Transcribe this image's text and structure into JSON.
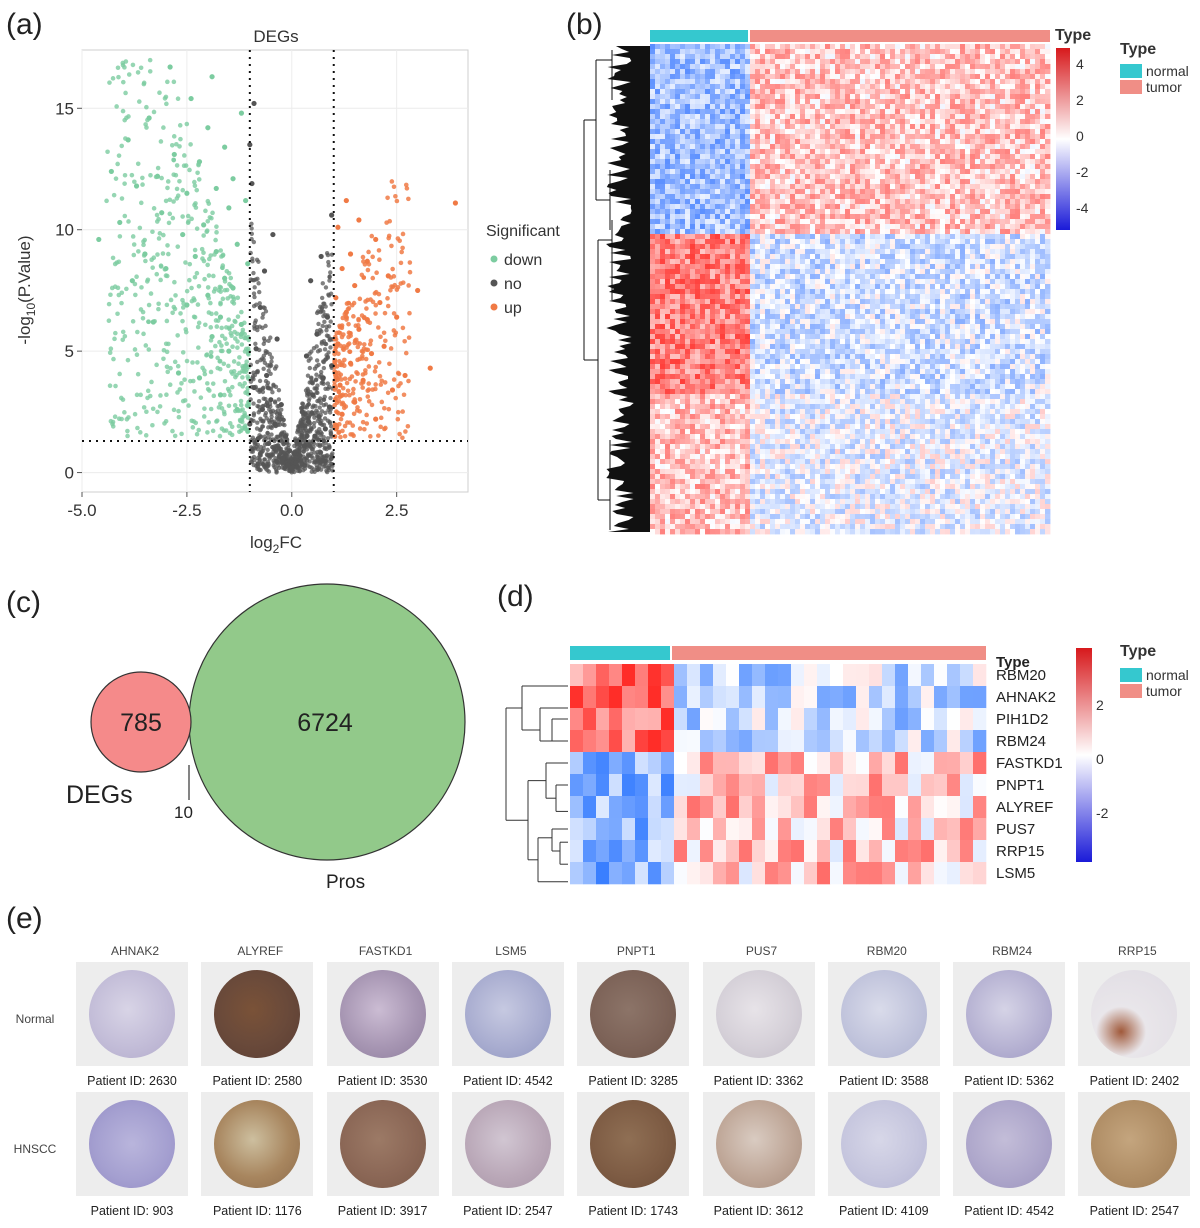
{
  "panels": {
    "a": "(a)",
    "b": "(b)",
    "c": "(c)",
    "d": "(d)",
    "e": "(e)"
  },
  "volcano": {
    "title": "DEGs",
    "ylabel_pre": "-log",
    "ylabel_sub": "10",
    "ylabel_post": "(P.Value)",
    "xlabel_pre": "log",
    "xlabel_sub": "2",
    "xlabel_post": "FC",
    "legend_title": "Significant",
    "legend": [
      {
        "label": "down",
        "color": "#7ccca0"
      },
      {
        "label": "no",
        "color": "#555555"
      },
      {
        "label": "up",
        "color": "#f07a45"
      }
    ]
  },
  "chart_data": {
    "type": "scatter",
    "title": "DEGs",
    "xlabel": "log2FC",
    "ylabel": "-log10(P.Value)",
    "xlim": [
      -5.0,
      4.2
    ],
    "ylim": [
      -0.8,
      17.4
    ],
    "xticks": [
      "-5.0",
      "-2.5",
      "0.0",
      "2.5"
    ],
    "xtick_values": [
      -5.0,
      -2.5,
      0.0,
      2.5
    ],
    "yticks": [
      "0",
      "5",
      "10",
      "15"
    ],
    "ytick_values": [
      0,
      5,
      10,
      15
    ],
    "thresholds": {
      "logFC": [
        -1,
        1
      ],
      "neglog10p": 1.3
    },
    "grid": true,
    "legend_position": "right",
    "series": [
      {
        "name": "down",
        "color": "#7ccca0",
        "points": [
          [
            -4.6,
            9.6
          ],
          [
            -4.3,
            12.4
          ],
          [
            -4.1,
            10.3
          ],
          [
            -3.9,
            13.7
          ],
          [
            -3.8,
            7.9
          ],
          [
            -3.7,
            11.8
          ],
          [
            -3.5,
            9.0
          ],
          [
            -3.4,
            14.6
          ],
          [
            -3.3,
            6.2
          ],
          [
            -3.2,
            12.2
          ],
          [
            -3.1,
            10.7
          ],
          [
            -3.0,
            8.4
          ],
          [
            -2.9,
            16.7
          ],
          [
            -2.8,
            13.1
          ],
          [
            -2.7,
            4.1
          ],
          [
            -2.6,
            9.8
          ],
          [
            -2.5,
            11.5
          ],
          [
            -2.5,
            6.9
          ],
          [
            -2.4,
            15.4
          ],
          [
            -2.3,
            8.9
          ],
          [
            -2.2,
            12.8
          ],
          [
            -2.2,
            3.9
          ],
          [
            -2.1,
            10.2
          ],
          [
            -2.0,
            7.3
          ],
          [
            -2.0,
            14.2
          ],
          [
            -1.9,
            5.6
          ],
          [
            -1.9,
            16.3
          ],
          [
            -1.8,
            9.1
          ],
          [
            -1.8,
            11.7
          ],
          [
            -1.7,
            6.4
          ],
          [
            -1.7,
            3.2
          ],
          [
            -1.6,
            13.4
          ],
          [
            -1.6,
            8.0
          ],
          [
            -1.5,
            10.9
          ],
          [
            -1.5,
            5.0
          ],
          [
            -1.4,
            12.1
          ],
          [
            -1.4,
            7.6
          ],
          [
            -1.3,
            2.6
          ],
          [
            -1.3,
            9.4
          ],
          [
            -1.2,
            6.1
          ],
          [
            -1.2,
            14.8
          ],
          [
            -1.1,
            4.4
          ],
          [
            -1.1,
            11.2
          ],
          [
            -1.05,
            1.7
          ],
          [
            -1.05,
            8.6
          ]
        ]
      },
      {
        "name": "up",
        "color": "#f07a45",
        "points": [
          [
            1.05,
            1.8
          ],
          [
            1.05,
            7.2
          ],
          [
            1.1,
            5.3
          ],
          [
            1.1,
            10.1
          ],
          [
            1.15,
            3.6
          ],
          [
            1.2,
            8.4
          ],
          [
            1.2,
            2.4
          ],
          [
            1.3,
            6.6
          ],
          [
            1.3,
            11.2
          ],
          [
            1.4,
            4.5
          ],
          [
            1.4,
            9.0
          ],
          [
            1.5,
            7.7
          ],
          [
            1.5,
            2.9
          ],
          [
            1.6,
            5.9
          ],
          [
            1.6,
            10.4
          ],
          [
            1.7,
            3.8
          ],
          [
            1.8,
            8.7
          ],
          [
            1.8,
            6.3
          ],
          [
            1.9,
            4.9
          ],
          [
            2.0,
            9.6
          ],
          [
            2.0,
            2.2
          ],
          [
            2.1,
            7.0
          ],
          [
            2.2,
            5.2
          ],
          [
            2.3,
            8.1
          ],
          [
            2.4,
            3.4
          ],
          [
            2.5,
            6.4
          ],
          [
            2.7,
            4.0
          ],
          [
            3.0,
            7.5
          ],
          [
            3.3,
            4.3
          ],
          [
            3.9,
            11.1
          ]
        ]
      },
      {
        "name": "no",
        "color": "#555555",
        "points": [
          [
            -1.0,
            2.0
          ],
          [
            -0.9,
            3.5
          ],
          [
            -0.85,
            5.1
          ],
          [
            -0.8,
            1.4
          ],
          [
            -0.75,
            6.8
          ],
          [
            -0.7,
            2.6
          ],
          [
            -0.65,
            8.3
          ],
          [
            -0.6,
            4.0
          ],
          [
            -0.55,
            1.2
          ],
          [
            -0.5,
            3.0
          ],
          [
            -0.45,
            9.8
          ],
          [
            -0.4,
            2.0
          ],
          [
            -0.35,
            5.5
          ],
          [
            -0.3,
            1.0
          ],
          [
            -0.25,
            2.8
          ],
          [
            -0.2,
            0.6
          ],
          [
            -0.15,
            1.5
          ],
          [
            -0.1,
            0.3
          ],
          [
            -0.05,
            0.9
          ],
          [
            0.0,
            0.2
          ],
          [
            0.05,
            0.8
          ],
          [
            0.1,
            0.4
          ],
          [
            0.15,
            1.3
          ],
          [
            0.2,
            0.7
          ],
          [
            0.25,
            2.5
          ],
          [
            0.3,
            1.1
          ],
          [
            0.35,
            4.8
          ],
          [
            0.4,
            2.1
          ],
          [
            0.45,
            7.9
          ],
          [
            0.5,
            3.2
          ],
          [
            0.55,
            1.5
          ],
          [
            0.6,
            5.7
          ],
          [
            0.65,
            2.3
          ],
          [
            0.7,
            8.9
          ],
          [
            0.75,
            3.9
          ],
          [
            0.8,
            1.8
          ],
          [
            0.85,
            6.4
          ],
          [
            0.9,
            2.7
          ],
          [
            0.95,
            4.4
          ],
          [
            -0.95,
            11.9
          ],
          [
            -1.0,
            13.5
          ],
          [
            -0.9,
            15.2
          ],
          [
            0.95,
            10.6
          ]
        ]
      }
    ]
  },
  "heatmap_b": {
    "type_label": "Type",
    "scale_ticks": [
      "4",
      "2",
      "0",
      "-2",
      "-4"
    ],
    "legend_title": "Type",
    "legend": [
      {
        "label": "normal",
        "color": "#35c8cf"
      },
      {
        "label": "tumor",
        "color": "#f08e86"
      }
    ]
  },
  "venn": {
    "left_value": "785",
    "right_value": "6724",
    "overlap_value": "10",
    "left_label": "DEGs",
    "right_label": "Pros",
    "left_color": "#f58a8a",
    "right_color": "#92c98a"
  },
  "heatmap_d": {
    "type_label": "Type",
    "genes": [
      "RBM20",
      "AHNAK2",
      "PIH1D2",
      "RBM24",
      "FASTKD1",
      "PNPT1",
      "ALYREF",
      "PUS7",
      "RRP15",
      "LSM5"
    ],
    "scale_ticks": [
      "2",
      "0",
      "-2"
    ],
    "legend_title": "Type",
    "legend": [
      {
        "label": "normal",
        "color": "#35c8cf"
      },
      {
        "label": "tumor",
        "color": "#f08e86"
      }
    ]
  },
  "ihc": {
    "row_labels": [
      "Normal",
      "HNSCC"
    ],
    "genes": [
      {
        "name": "AHNAK2",
        "normal_id": "Patient ID: 2630",
        "tumor_id": "Patient ID: 903"
      },
      {
        "name": "ALYREF",
        "normal_id": "Patient ID: 2580",
        "tumor_id": "Patient ID: 1176"
      },
      {
        "name": "FASTKD1",
        "normal_id": "Patient ID: 3530",
        "tumor_id": "Patient ID: 3917"
      },
      {
        "name": "LSM5",
        "normal_id": "Patient ID: 4542",
        "tumor_id": "Patient ID: 2547"
      },
      {
        "name": "PNPT1",
        "normal_id": "Patient ID: 3285",
        "tumor_id": "Patient ID: 1743"
      },
      {
        "name": "PUS7",
        "normal_id": "Patient ID: 3362",
        "tumor_id": "Patient ID: 3612"
      },
      {
        "name": "RBM20",
        "normal_id": "Patient ID: 3588",
        "tumor_id": "Patient ID: 4109"
      },
      {
        "name": "RBM24",
        "normal_id": "Patient ID: 5362",
        "tumor_id": "Patient ID: 4542"
      },
      {
        "name": "RRP15",
        "normal_id": "Patient ID: 2402",
        "tumor_id": "Patient ID: 2547"
      }
    ]
  }
}
